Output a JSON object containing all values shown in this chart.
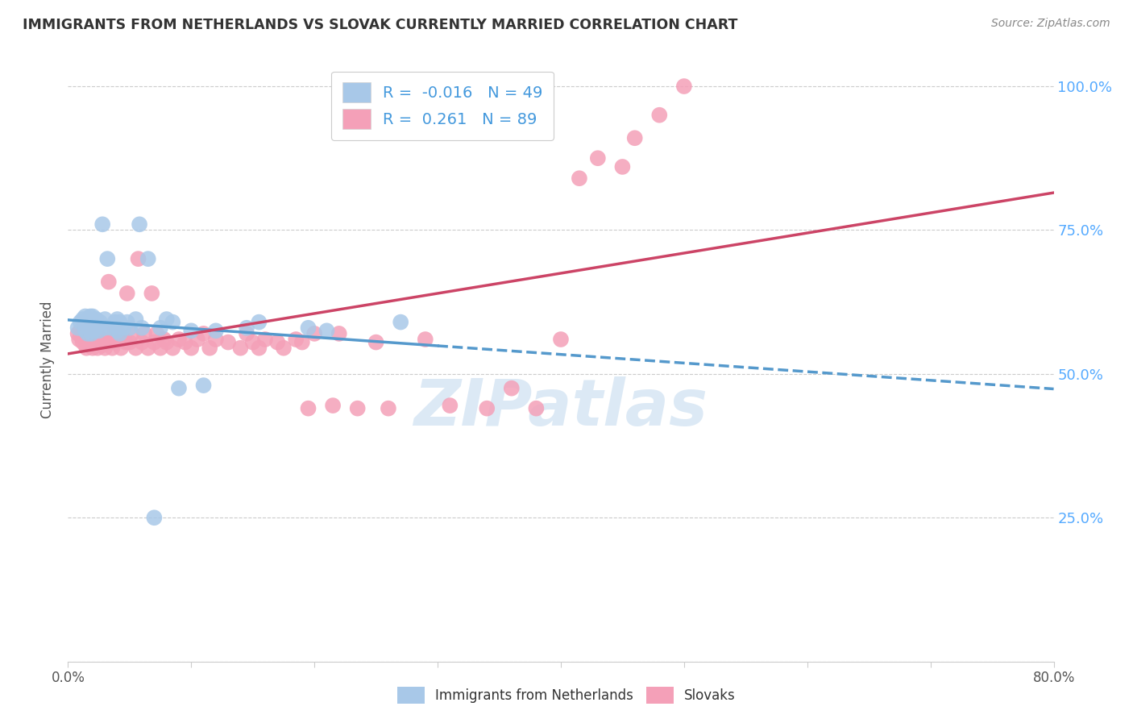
{
  "title": "IMMIGRANTS FROM NETHERLANDS VS SLOVAK CURRENTLY MARRIED CORRELATION CHART",
  "source": "Source: ZipAtlas.com",
  "ylabel": "Currently Married",
  "x_min": 0.0,
  "x_max": 0.8,
  "y_min": 0.0,
  "y_max": 1.05,
  "x_ticks": [
    0.0,
    0.1,
    0.2,
    0.3,
    0.4,
    0.5,
    0.6,
    0.7,
    0.8
  ],
  "x_tick_labels": [
    "0.0%",
    "",
    "",
    "",
    "",
    "",
    "",
    "",
    "80.0%"
  ],
  "y_ticks": [
    0.0,
    0.25,
    0.5,
    0.75,
    1.0
  ],
  "y_tick_labels_right": [
    "",
    "25.0%",
    "50.0%",
    "75.0%",
    "100.0%"
  ],
  "color_blue": "#a8c8e8",
  "color_pink": "#f4a0b8",
  "line_color_blue": "#5599cc",
  "line_color_pink": "#cc4466",
  "watermark": "ZIPatlas",
  "blue_R": -0.016,
  "blue_N": 49,
  "pink_R": 0.261,
  "pink_N": 89,
  "blue_points_x": [
    0.008,
    0.01,
    0.012,
    0.014,
    0.014,
    0.016,
    0.016,
    0.017,
    0.018,
    0.018,
    0.019,
    0.02,
    0.02,
    0.02,
    0.021,
    0.022,
    0.023,
    0.025,
    0.026,
    0.028,
    0.03,
    0.03,
    0.032,
    0.035,
    0.038,
    0.04,
    0.04,
    0.042,
    0.042,
    0.045,
    0.048,
    0.05,
    0.055,
    0.058,
    0.06,
    0.065,
    0.07,
    0.075,
    0.08,
    0.085,
    0.09,
    0.1,
    0.11,
    0.12,
    0.145,
    0.155,
    0.195,
    0.21,
    0.27
  ],
  "blue_points_y": [
    0.58,
    0.59,
    0.595,
    0.575,
    0.6,
    0.57,
    0.595,
    0.58,
    0.585,
    0.6,
    0.57,
    0.58,
    0.59,
    0.6,
    0.575,
    0.58,
    0.595,
    0.575,
    0.59,
    0.76,
    0.58,
    0.595,
    0.7,
    0.58,
    0.59,
    0.575,
    0.595,
    0.57,
    0.59,
    0.58,
    0.59,
    0.58,
    0.595,
    0.76,
    0.58,
    0.7,
    0.25,
    0.58,
    0.595,
    0.59,
    0.475,
    0.575,
    0.48,
    0.575,
    0.58,
    0.59,
    0.58,
    0.575,
    0.59
  ],
  "pink_points_x": [
    0.008,
    0.009,
    0.01,
    0.011,
    0.012,
    0.013,
    0.014,
    0.015,
    0.015,
    0.016,
    0.016,
    0.017,
    0.018,
    0.018,
    0.019,
    0.02,
    0.02,
    0.021,
    0.022,
    0.023,
    0.024,
    0.025,
    0.026,
    0.027,
    0.028,
    0.028,
    0.03,
    0.03,
    0.032,
    0.033,
    0.035,
    0.036,
    0.038,
    0.04,
    0.041,
    0.043,
    0.045,
    0.047,
    0.048,
    0.05,
    0.052,
    0.055,
    0.057,
    0.06,
    0.062,
    0.065,
    0.068,
    0.07,
    0.072,
    0.075,
    0.078,
    0.08,
    0.085,
    0.09,
    0.095,
    0.1,
    0.105,
    0.11,
    0.115,
    0.12,
    0.13,
    0.14,
    0.145,
    0.15,
    0.155,
    0.16,
    0.17,
    0.175,
    0.185,
    0.19,
    0.195,
    0.2,
    0.215,
    0.22,
    0.235,
    0.25,
    0.26,
    0.29,
    0.31,
    0.34,
    0.36,
    0.38,
    0.4,
    0.415,
    0.43,
    0.45,
    0.46,
    0.48,
    0.5
  ],
  "pink_points_y": [
    0.57,
    0.56,
    0.575,
    0.565,
    0.555,
    0.58,
    0.56,
    0.545,
    0.575,
    0.555,
    0.58,
    0.56,
    0.555,
    0.58,
    0.565,
    0.545,
    0.57,
    0.555,
    0.56,
    0.57,
    0.545,
    0.555,
    0.57,
    0.56,
    0.55,
    0.575,
    0.545,
    0.57,
    0.555,
    0.66,
    0.57,
    0.545,
    0.555,
    0.56,
    0.57,
    0.545,
    0.56,
    0.555,
    0.64,
    0.555,
    0.57,
    0.545,
    0.7,
    0.555,
    0.57,
    0.545,
    0.64,
    0.555,
    0.57,
    0.545,
    0.56,
    0.555,
    0.545,
    0.56,
    0.555,
    0.545,
    0.56,
    0.57,
    0.545,
    0.56,
    0.555,
    0.545,
    0.57,
    0.555,
    0.545,
    0.56,
    0.555,
    0.545,
    0.56,
    0.555,
    0.44,
    0.57,
    0.445,
    0.57,
    0.44,
    0.555,
    0.44,
    0.56,
    0.445,
    0.44,
    0.475,
    0.44,
    0.56,
    0.84,
    0.875,
    0.86,
    0.91,
    0.95,
    1.0
  ]
}
